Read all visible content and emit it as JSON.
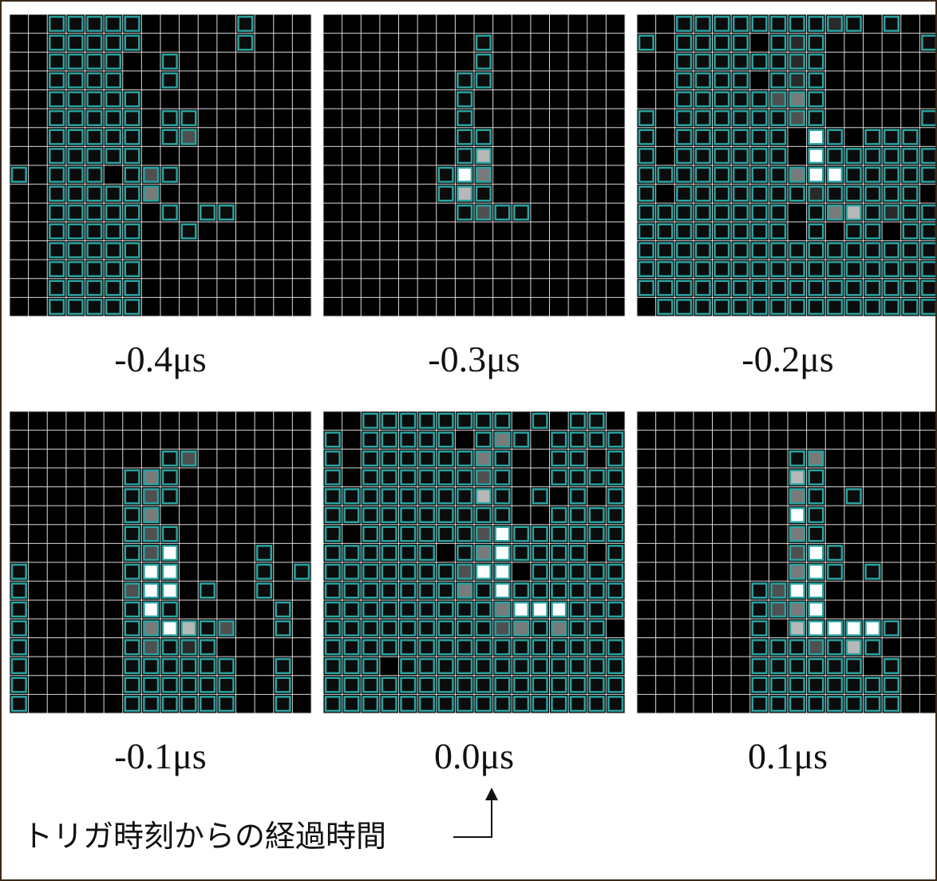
{
  "panels": [
    {
      "label": "-0.4μs"
    },
    {
      "label": "-0.3μs"
    },
    {
      "label": "-0.2μs"
    },
    {
      "label": "-0.1μs"
    },
    {
      "label": "0.0μs"
    },
    {
      "label": "0.1μs"
    }
  ],
  "annotation": "トリガ時刻からの経過時間"
}
